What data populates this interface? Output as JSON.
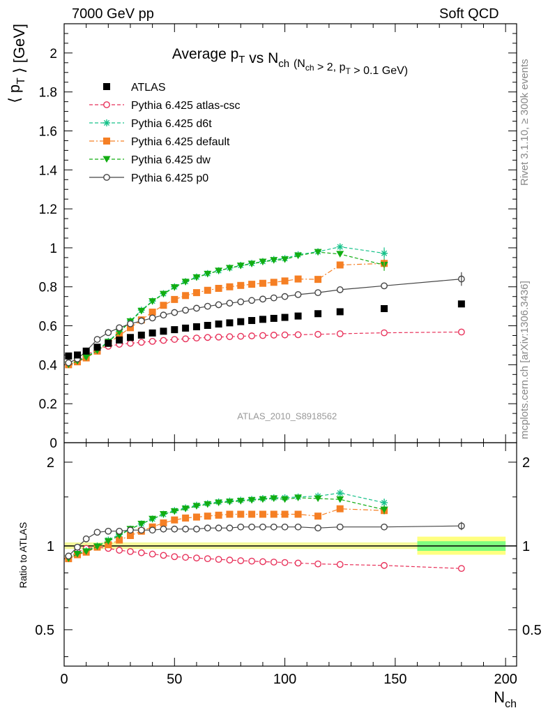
{
  "header": {
    "left": "7000 GeV pp",
    "right": "Soft QCD"
  },
  "sidebar": {
    "rivet": "Rivet 3.1.10, ≥ 300k events",
    "mcplots": "mcplots.cern.ch [arXiv:1306.3436]"
  },
  "colors": {
    "atlas": "#000000",
    "atlas_csc": "#e8315a",
    "d6t": "#17c28a",
    "default": "#f57f24",
    "dw": "#12ad12",
    "p0": "#444444",
    "band_outer": "#ffff80",
    "band_inner": "#80ff80",
    "watermark": "#999999"
  },
  "chart_data": [
    {
      "type": "scatter",
      "title": "Average p_T vs N_ch (N_ch > 2, p_T > 0.1 GeV)",
      "xlabel": "N_ch",
      "ylabel": "⟨ p_T ⟩ [GeV]",
      "watermark": "ATLAS_2010_S8918562",
      "xlim": [
        0,
        205
      ],
      "ylim": [
        0,
        2.15
      ],
      "yticks": [
        "0",
        "0.2",
        "0.4",
        "0.6",
        "0.8",
        "1",
        "1.2",
        "1.4",
        "1.6",
        "1.8",
        "2"
      ],
      "legend_position": "top-left",
      "series": [
        {
          "name": "ATLAS",
          "key": "atlas",
          "marker": "square-filled",
          "line": "none",
          "x": [
            2,
            6,
            10,
            15,
            20,
            25,
            30,
            35,
            40,
            45,
            50,
            55,
            60,
            65,
            70,
            75,
            80,
            85,
            90,
            95,
            100,
            106,
            115,
            125,
            145,
            180
          ],
          "y": [
            0.445,
            0.45,
            0.47,
            0.49,
            0.51,
            0.527,
            0.54,
            0.552,
            0.563,
            0.572,
            0.58,
            0.588,
            0.595,
            0.602,
            0.609,
            0.615,
            0.621,
            0.627,
            0.633,
            0.638,
            0.643,
            0.65,
            0.662,
            0.672,
            0.688,
            0.712
          ]
        },
        {
          "name": "Pythia 6.425 atlas-csc",
          "key": "atlas_csc",
          "marker": "circle-open",
          "line": "dashed",
          "x": [
            2,
            6,
            10,
            15,
            20,
            25,
            30,
            35,
            40,
            45,
            50,
            55,
            60,
            65,
            70,
            75,
            80,
            85,
            90,
            95,
            100,
            106,
            115,
            125,
            145,
            180
          ],
          "y": [
            0.405,
            0.42,
            0.448,
            0.48,
            0.495,
            0.505,
            0.51,
            0.515,
            0.52,
            0.525,
            0.53,
            0.533,
            0.537,
            0.54,
            0.542,
            0.544,
            0.546,
            0.548,
            0.55,
            0.552,
            0.553,
            0.554,
            0.556,
            0.559,
            0.564,
            0.568
          ]
        },
        {
          "name": "Pythia 6.425 d6t",
          "key": "d6t",
          "marker": "star",
          "line": "dashed",
          "x": [
            2,
            6,
            10,
            15,
            20,
            25,
            30,
            35,
            40,
            45,
            50,
            55,
            60,
            65,
            70,
            75,
            80,
            85,
            90,
            95,
            100,
            106,
            115,
            125,
            145
          ],
          "y": [
            0.405,
            0.42,
            0.44,
            0.475,
            0.52,
            0.57,
            0.625,
            0.68,
            0.727,
            0.765,
            0.8,
            0.827,
            0.85,
            0.868,
            0.883,
            0.897,
            0.91,
            0.92,
            0.93,
            0.94,
            0.945,
            0.965,
            0.98,
            1.005,
            0.972
          ]
        },
        {
          "name": "Pythia 6.425 default",
          "key": "default",
          "marker": "square-filled",
          "line": "dashdot",
          "x": [
            2,
            6,
            10,
            15,
            20,
            25,
            30,
            35,
            40,
            45,
            50,
            55,
            60,
            65,
            70,
            75,
            80,
            85,
            90,
            95,
            100,
            106,
            115,
            125,
            145
          ],
          "y": [
            0.4,
            0.415,
            0.435,
            0.47,
            0.51,
            0.55,
            0.59,
            0.63,
            0.67,
            0.705,
            0.735,
            0.755,
            0.77,
            0.782,
            0.792,
            0.8,
            0.807,
            0.813,
            0.818,
            0.823,
            0.83,
            0.84,
            0.838,
            0.912,
            0.92
          ]
        },
        {
          "name": "Pythia 6.425 dw",
          "key": "dw",
          "marker": "triangle-down-filled",
          "line": "dashed",
          "x": [
            2,
            6,
            10,
            15,
            20,
            25,
            30,
            35,
            40,
            45,
            50,
            55,
            60,
            65,
            70,
            75,
            80,
            85,
            90,
            95,
            100,
            106,
            115,
            125,
            145
          ],
          "y": [
            0.4,
            0.418,
            0.438,
            0.472,
            0.517,
            0.567,
            0.622,
            0.676,
            0.725,
            0.763,
            0.797,
            0.825,
            0.848,
            0.866,
            0.882,
            0.896,
            0.908,
            0.918,
            0.928,
            0.936,
            0.94,
            0.96,
            0.978,
            0.968,
            0.912
          ]
        },
        {
          "name": "Pythia 6.425 p0",
          "key": "p0",
          "marker": "circle-open",
          "line": "solid",
          "x": [
            2,
            6,
            10,
            15,
            20,
            25,
            30,
            35,
            40,
            45,
            50,
            55,
            60,
            65,
            70,
            75,
            80,
            85,
            90,
            95,
            100,
            106,
            115,
            125,
            145,
            180
          ],
          "y": [
            0.41,
            0.43,
            0.47,
            0.53,
            0.565,
            0.59,
            0.61,
            0.625,
            0.64,
            0.655,
            0.668,
            0.68,
            0.69,
            0.7,
            0.708,
            0.716,
            0.723,
            0.73,
            0.737,
            0.743,
            0.75,
            0.76,
            0.77,
            0.785,
            0.805,
            0.84
          ]
        }
      ]
    },
    {
      "type": "scatter",
      "title": "",
      "xlabel": "N_ch",
      "ylabel": "Ratio to ATLAS",
      "xlim": [
        0,
        205
      ],
      "ylim": [
        0.37,
        2.35
      ],
      "ylog": true,
      "xticks": [
        "0",
        "50",
        "100",
        "150",
        "200"
      ],
      "yticks": [
        "0.5",
        "1",
        "2"
      ],
      "reference": {
        "y": 1,
        "band_from": 160,
        "band_to": 200,
        "band_outer": [
          0.93,
          1.08
        ],
        "band_inner": [
          0.96,
          1.04
        ]
      },
      "series": [
        {
          "name": "Pythia 6.425 atlas-csc",
          "key": "atlas_csc",
          "x": [
            2,
            6,
            10,
            15,
            20,
            25,
            30,
            35,
            40,
            45,
            50,
            55,
            60,
            65,
            70,
            75,
            80,
            85,
            90,
            95,
            100,
            106,
            115,
            125,
            145,
            180
          ],
          "y": [
            0.91,
            0.95,
            0.98,
            0.99,
            0.98,
            0.965,
            0.955,
            0.945,
            0.935,
            0.925,
            0.915,
            0.91,
            0.905,
            0.9,
            0.895,
            0.89,
            0.885,
            0.882,
            0.878,
            0.875,
            0.872,
            0.868,
            0.862,
            0.858,
            0.851,
            0.83
          ]
        },
        {
          "name": "Pythia 6.425 d6t",
          "key": "d6t",
          "x": [
            2,
            6,
            10,
            15,
            20,
            25,
            30,
            35,
            40,
            45,
            50,
            55,
            60,
            65,
            70,
            75,
            80,
            85,
            90,
            95,
            100,
            106,
            115,
            125,
            145
          ],
          "y": [
            0.91,
            0.94,
            0.96,
            1.0,
            1.05,
            1.1,
            1.15,
            1.2,
            1.25,
            1.3,
            1.34,
            1.37,
            1.4,
            1.42,
            1.44,
            1.45,
            1.46,
            1.47,
            1.48,
            1.49,
            1.49,
            1.5,
            1.51,
            1.55,
            1.43
          ]
        },
        {
          "name": "Pythia 6.425 default",
          "key": "default",
          "x": [
            2,
            6,
            10,
            15,
            20,
            25,
            30,
            35,
            40,
            45,
            50,
            55,
            60,
            65,
            70,
            75,
            80,
            85,
            90,
            95,
            100,
            106,
            115,
            125,
            145
          ],
          "y": [
            0.9,
            0.93,
            0.95,
            0.99,
            1.01,
            1.05,
            1.09,
            1.13,
            1.17,
            1.21,
            1.24,
            1.26,
            1.27,
            1.28,
            1.29,
            1.3,
            1.3,
            1.3,
            1.3,
            1.3,
            1.3,
            1.3,
            1.28,
            1.36,
            1.34
          ]
        },
        {
          "name": "Pythia 6.425 dw",
          "key": "dw",
          "x": [
            2,
            6,
            10,
            15,
            20,
            25,
            30,
            35,
            40,
            45,
            50,
            55,
            60,
            65,
            70,
            75,
            80,
            85,
            90,
            95,
            100,
            106,
            115,
            125,
            145
          ],
          "y": [
            0.9,
            0.935,
            0.955,
            0.995,
            1.04,
            1.09,
            1.15,
            1.2,
            1.25,
            1.3,
            1.33,
            1.36,
            1.39,
            1.41,
            1.43,
            1.44,
            1.45,
            1.46,
            1.47,
            1.48,
            1.47,
            1.49,
            1.48,
            1.47,
            1.35
          ]
        },
        {
          "name": "Pythia 6.425 p0",
          "key": "p0",
          "x": [
            2,
            6,
            10,
            15,
            20,
            25,
            30,
            35,
            40,
            45,
            50,
            55,
            60,
            65,
            70,
            75,
            80,
            85,
            90,
            95,
            100,
            106,
            115,
            125,
            145,
            180
          ],
          "y": [
            0.92,
            0.99,
            1.06,
            1.12,
            1.13,
            1.13,
            1.14,
            1.14,
            1.14,
            1.15,
            1.15,
            1.15,
            1.15,
            1.16,
            1.16,
            1.16,
            1.17,
            1.17,
            1.17,
            1.17,
            1.17,
            1.17,
            1.16,
            1.17,
            1.17,
            1.18
          ]
        }
      ]
    }
  ]
}
